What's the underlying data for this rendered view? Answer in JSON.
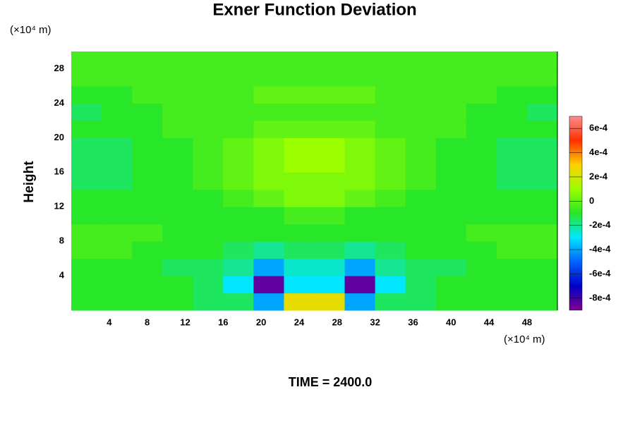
{
  "chart_data": {
    "type": "contour",
    "title": "Exner Function Deviation",
    "y_label": "Height",
    "x_unit": "(×10⁴ m)",
    "y_unit": "(×10⁴ m)",
    "footer": "TIME = 2400.0",
    "xlim": [
      0,
      51.2
    ],
    "ylim": [
      0,
      30
    ],
    "xticks": [
      4,
      8,
      12,
      16,
      20,
      24,
      28,
      32,
      36,
      40,
      44,
      48
    ],
    "yticks": [
      4,
      8,
      12,
      16,
      20,
      24,
      28
    ],
    "x": [
      1.6,
      4.8,
      8,
      11.2,
      14.4,
      17.6,
      20.8,
      24,
      27.2,
      30.4,
      33.6,
      36.8,
      40,
      43.2,
      46.4,
      49.6
    ],
    "y": [
      1,
      3,
      5,
      7,
      9,
      11,
      13,
      15,
      17,
      19,
      21,
      23,
      25,
      27,
      29
    ],
    "z": [
      [
        -0.0001,
        -0.0001,
        -0.0001,
        -0.0001,
        -0.00015,
        -0.00015,
        -0.0004,
        0.00025,
        0.00025,
        -0.0004,
        -0.00015,
        -0.00015,
        -0.0001,
        -0.0001,
        -0.0001,
        -0.0001
      ],
      [
        -0.0001,
        -0.0001,
        -0.0001,
        -0.0001,
        -0.00015,
        -0.0003,
        -0.00085,
        -0.0003,
        -0.0003,
        -0.00085,
        -0.0003,
        -0.00015,
        -0.0001,
        -0.0001,
        -0.0001,
        -0.0001
      ],
      [
        -0.0001,
        -0.0001,
        -0.0001,
        -0.00015,
        -0.00015,
        -0.0002,
        -0.0004,
        -0.00025,
        -0.00025,
        -0.0004,
        -0.0002,
        -0.00015,
        -0.00015,
        -0.0001,
        -0.0001,
        -0.0001
      ],
      [
        -5e-05,
        -5e-05,
        -0.0001,
        -0.0001,
        -0.0001,
        -0.00015,
        -0.0002,
        -0.00015,
        -0.00015,
        -0.0002,
        -0.00015,
        -0.0001,
        -0.0001,
        -0.0001,
        -5e-05,
        -5e-05
      ],
      [
        -5e-05,
        -5e-05,
        -5e-05,
        -0.0001,
        -0.0001,
        -0.0001,
        -0.0001,
        -0.0001,
        -0.0001,
        -0.0001,
        -0.0001,
        -0.0001,
        -0.0001,
        -5e-05,
        -5e-05,
        -5e-05
      ],
      [
        -0.0001,
        -0.0001,
        -0.0001,
        -0.0001,
        -0.0001,
        -0.0001,
        -0.0001,
        -5e-05,
        -5e-05,
        -0.0001,
        -0.0001,
        -0.0001,
        -0.0001,
        -0.0001,
        -0.0001,
        -0.0001
      ],
      [
        -0.0001,
        -0.0001,
        -0.0001,
        -0.0001,
        -0.0001,
        -5e-05,
        0,
        5e-05,
        5e-05,
        0,
        -5e-05,
        -0.0001,
        -0.0001,
        -0.0001,
        -0.0001,
        -0.0001
      ],
      [
        -0.00015,
        -0.00015,
        -0.0001,
        -0.0001,
        -5e-05,
        0,
        5e-05,
        5e-05,
        5e-05,
        5e-05,
        0,
        -5e-05,
        -0.0001,
        -0.0001,
        -0.00015,
        -0.00015
      ],
      [
        -0.00015,
        -0.00015,
        -0.0001,
        -0.0001,
        -5e-05,
        0,
        5e-05,
        0.0001,
        0.0001,
        5e-05,
        0,
        -5e-05,
        -0.0001,
        -0.0001,
        -0.00015,
        -0.00015
      ],
      [
        -0.00015,
        -0.00015,
        -0.0001,
        -0.0001,
        -5e-05,
        0,
        5e-05,
        0.0001,
        0.0001,
        5e-05,
        0,
        -5e-05,
        -0.0001,
        -0.0001,
        -0.00015,
        -0.00015
      ],
      [
        -0.0001,
        -0.0001,
        -0.0001,
        -5e-05,
        -5e-05,
        -5e-05,
        0,
        0,
        0,
        0,
        -5e-05,
        -5e-05,
        -5e-05,
        -0.0001,
        -0.0001,
        -0.0001
      ],
      [
        -0.00015,
        -0.0001,
        -0.0001,
        -5e-05,
        -5e-05,
        -5e-05,
        -5e-05,
        -5e-05,
        -5e-05,
        -5e-05,
        -5e-05,
        -5e-05,
        -5e-05,
        -0.0001,
        -0.0001,
        -0.00015
      ],
      [
        -0.0001,
        -0.0001,
        -5e-05,
        -5e-05,
        -5e-05,
        -5e-05,
        0,
        0,
        0,
        0,
        -5e-05,
        -5e-05,
        -5e-05,
        -5e-05,
        -0.0001,
        -0.0001
      ],
      [
        -5e-05,
        -5e-05,
        -5e-05,
        -5e-05,
        -5e-05,
        -5e-05,
        -5e-05,
        -5e-05,
        -5e-05,
        -5e-05,
        -5e-05,
        -5e-05,
        -5e-05,
        -5e-05,
        -5e-05,
        -5e-05
      ],
      [
        -5e-05,
        -5e-05,
        -5e-05,
        -5e-05,
        -5e-05,
        -5e-05,
        -5e-05,
        -5e-05,
        -5e-05,
        -5e-05,
        -5e-05,
        -5e-05,
        -5e-05,
        -5e-05,
        -5e-05,
        -5e-05
      ]
    ],
    "colorbar_lim": [
      -0.0009,
      0.0007
    ],
    "colorbar_ticks": [
      {
        "value": 0.0006,
        "label": "6e-4"
      },
      {
        "value": 0.0004,
        "label": "4e-4"
      },
      {
        "value": 0.0002,
        "label": "2e-4"
      },
      0,
      {
        "value": -0.0002,
        "label": "-2e-4"
      },
      {
        "value": -0.0004,
        "label": "-4e-4"
      },
      {
        "value": -0.0006,
        "label": "-6e-4"
      },
      {
        "value": -0.0008,
        "label": "-8e-4"
      }
    ],
    "colormap": [
      "#800090",
      "#0000c8",
      "#0064ff",
      "#00e6ff",
      "#28e628",
      "#9cff00",
      "#ffd000",
      "#ff3000",
      "#ff8c8c"
    ]
  }
}
